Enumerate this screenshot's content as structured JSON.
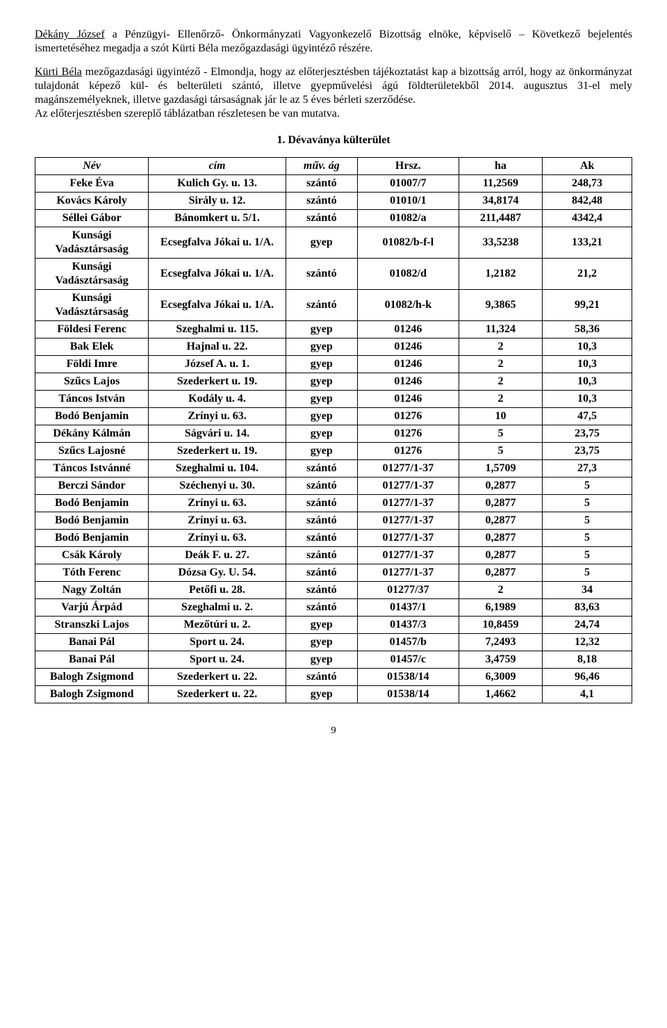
{
  "para1_lead": "Dékány József",
  "para1_rest": " a Pénzügyi- Ellenőrző- Önkormányzati Vagyonkezelő Bizottság elnöke, képviselő – Következő bejelentés ismertetéséhez megadja a szót Kürti Béla mezőgazdasági ügyintéző részére.",
  "para2_lead": "Kürti Béla",
  "para2_rest": " mezőgazdasági ügyintéző - Elmondja, hogy az előterjesztésben tájékoztatást kap a bizottság arról, hogy az önkormányzat tulajdonát képező kül- és belterületi szántó, illetve gyepművelési ágú földterületekből 2014. augusztus 31-el mely magánszemélyeknek, illetve gazdasági társaságnak jár le az 5 éves bérleti szerződése.",
  "para2_line2": "Az előterjesztésben szereplő táblázatban részletesen be van mutatva.",
  "heading": "1.  Dévaványa külterület",
  "headers": {
    "nev": "Név",
    "cim": "cím",
    "muv": "műv. ág",
    "hrsz": "Hrsz.",
    "ha": "ha",
    "ak": "Ak"
  },
  "rows": [
    {
      "nev": "Feke Éva",
      "cim": "Kulich Gy. u. 13.",
      "muv": "szántó",
      "hrsz": "01007/7",
      "ha": "11,2569",
      "ak": "248,73"
    },
    {
      "nev": "Kovács Károly",
      "cim": "Sirály u. 12.",
      "muv": "szántó",
      "hrsz": "01010/1",
      "ha": "34,8174",
      "ak": "842,48"
    },
    {
      "nev": "Séllei Gábor",
      "cim": "Bánomkert u. 5/1.",
      "muv": "szántó",
      "hrsz": "01082/a",
      "ha": "211,4487",
      "ak": "4342,4"
    },
    {
      "nev": "Kunsági Vadásztársaság",
      "cim": "Ecsegfalva Jókai u. 1/A.",
      "muv": "gyep",
      "hrsz": "01082/b-f-l",
      "ha": "33,5238",
      "ak": "133,21"
    },
    {
      "nev": "Kunsági Vadásztársaság",
      "cim": "Ecsegfalva Jókai u. 1/A.",
      "muv": "szántó",
      "hrsz": "01082/d",
      "ha": "1,2182",
      "ak": "21,2"
    },
    {
      "nev": "Kunsági Vadásztársaság",
      "cim": "Ecsegfalva Jókai u. 1/A.",
      "muv": "szántó",
      "hrsz": "01082/h-k",
      "ha": "9,3865",
      "ak": "99,21"
    },
    {
      "nev": "Földesi Ferenc",
      "cim": "Szeghalmi u. 115.",
      "muv": "gyep",
      "hrsz": "01246",
      "ha": "11,324",
      "ak": "58,36"
    },
    {
      "nev": "Bak Elek",
      "cim": "Hajnal u. 22.",
      "muv": "gyep",
      "hrsz": "01246",
      "ha": "2",
      "ak": "10,3"
    },
    {
      "nev": "Földi Imre",
      "cim": "József A. u. 1.",
      "muv": "gyep",
      "hrsz": "01246",
      "ha": "2",
      "ak": "10,3"
    },
    {
      "nev": "Szűcs Lajos",
      "cim": "Szederkert u. 19.",
      "muv": "gyep",
      "hrsz": "01246",
      "ha": "2",
      "ak": "10,3"
    },
    {
      "nev": "Táncos István",
      "cim": "Kodály u. 4.",
      "muv": "gyep",
      "hrsz": "01246",
      "ha": "2",
      "ak": "10,3"
    },
    {
      "nev": "Bodó Benjamin",
      "cim": "Zrínyi u. 63.",
      "muv": "gyep",
      "hrsz": "01276",
      "ha": "10",
      "ak": "47,5"
    },
    {
      "nev": "Dékány Kálmán",
      "cim": "Ságvári u. 14.",
      "muv": "gyep",
      "hrsz": "01276",
      "ha": "5",
      "ak": "23,75"
    },
    {
      "nev": "Szűcs Lajosné",
      "cim": "Szederkert u. 19.",
      "muv": "gyep",
      "hrsz": "01276",
      "ha": "5",
      "ak": "23,75"
    },
    {
      "nev": "Táncos Istvánné",
      "cim": "Szeghalmi u. 104.",
      "muv": "szántó",
      "hrsz": "01277/1-37",
      "ha": "1,5709",
      "ak": "27,3"
    },
    {
      "nev": "Berczi Sándor",
      "cim": "Széchenyi u. 30.",
      "muv": "szántó",
      "hrsz": "01277/1-37",
      "ha": "0,2877",
      "ak": "5"
    },
    {
      "nev": "Bodó Benjamin",
      "cim": "Zrínyi u. 63.",
      "muv": "szántó",
      "hrsz": "01277/1-37",
      "ha": "0,2877",
      "ak": "5"
    },
    {
      "nev": "Bodó Benjamin",
      "cim": "Zrínyi u. 63.",
      "muv": "szántó",
      "hrsz": "01277/1-37",
      "ha": "0,2877",
      "ak": "5"
    },
    {
      "nev": "Bodó Benjamin",
      "cim": "Zrínyi u. 63.",
      "muv": "szántó",
      "hrsz": "01277/1-37",
      "ha": "0,2877",
      "ak": "5"
    },
    {
      "nev": "Csák Károly",
      "cim": "Deák F. u. 27.",
      "muv": "szántó",
      "hrsz": "01277/1-37",
      "ha": "0,2877",
      "ak": "5"
    },
    {
      "nev": "Tóth Ferenc",
      "cim": "Dózsa Gy. U. 54.",
      "muv": "szántó",
      "hrsz": "01277/1-37",
      "ha": "0,2877",
      "ak": "5"
    },
    {
      "nev": "Nagy Zoltán",
      "cim": "Petőfi u. 28.",
      "muv": "szántó",
      "hrsz": "01277/37",
      "ha": "2",
      "ak": "34"
    },
    {
      "nev": "Varjú Árpád",
      "cim": "Szeghalmi u. 2.",
      "muv": "szántó",
      "hrsz": "01437/1",
      "ha": "6,1989",
      "ak": "83,63"
    },
    {
      "nev": "Stranszki Lajos",
      "cim": "Mezőtúri u. 2.",
      "muv": "gyep",
      "hrsz": "01437/3",
      "ha": "10,8459",
      "ak": "24,74"
    },
    {
      "nev": "Banai Pál",
      "cim": "Sport u. 24.",
      "muv": "gyep",
      "hrsz": "01457/b",
      "ha": "7,2493",
      "ak": "12,32"
    },
    {
      "nev": "Banai Pál",
      "cim": "Sport u. 24.",
      "muv": "gyep",
      "hrsz": "01457/c",
      "ha": "3,4759",
      "ak": "8,18"
    },
    {
      "nev": "Balogh Zsigmond",
      "cim": "Szederkert u. 22.",
      "muv": "szántó",
      "hrsz": "01538/14",
      "ha": "6,3009",
      "ak": "96,46"
    },
    {
      "nev": "Balogh Zsigmond",
      "cim": "Szederkert u. 22.",
      "muv": "gyep",
      "hrsz": "01538/14",
      "ha": "1,4662",
      "ak": "4,1"
    }
  ],
  "pagenum": "9"
}
